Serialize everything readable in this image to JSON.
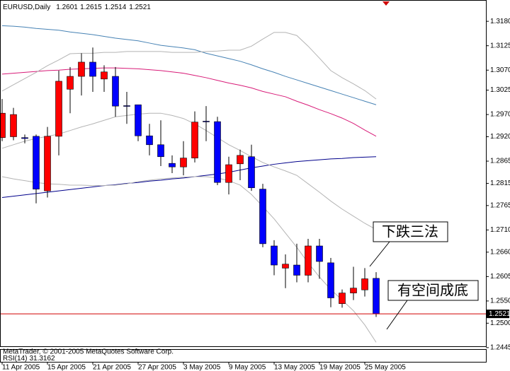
{
  "chart_data": {
    "type": "candlestick",
    "title": "EURUSD,Daily",
    "categories": [
      "11 Apr 2005",
      null,
      null,
      null,
      "15 Apr 2005",
      null,
      null,
      null,
      "21 Apr 2005",
      null,
      null,
      null,
      "27 Apr 2005",
      null,
      null,
      null,
      "3 May 2005",
      null,
      null,
      null,
      "9 May 2005",
      null,
      null,
      null,
      "13 May 2005",
      null,
      null,
      null,
      "19 May 2005",
      null,
      null,
      null,
      "25 May 2005",
      null
    ],
    "open": [
      1.2918,
      1.292,
      1.2918,
      1.2921,
      1.2798,
      1.2921,
      1.3027,
      1.3056,
      1.3088,
      1.305,
      1.3056,
      1.299,
      1.2992,
      1.2922,
      1.2902,
      1.286,
      1.2852,
      1.2872,
      1.2955,
      1.2954,
      1.2817,
      1.2859,
      1.2875,
      1.2802,
      1.2674,
      1.2624,
      1.2631,
      1.2608,
      1.2674,
      1.2636,
      1.2544,
      1.2568,
      1.2575,
      1.2601
    ],
    "high": [
      1.3005,
      1.2985,
      1.2925,
      1.2925,
      1.2942,
      1.3069,
      1.3077,
      1.3108,
      1.3121,
      1.3081,
      1.3077,
      1.3021,
      1.2992,
      1.2949,
      1.2957,
      1.2878,
      1.291,
      1.2977,
      1.2989,
      1.2965,
      1.2875,
      1.2891,
      1.2902,
      1.2814,
      1.2687,
      1.2655,
      1.2679,
      1.269,
      1.269,
      1.2647,
      1.2576,
      1.2627,
      1.2624,
      1.2615
    ],
    "low": [
      1.291,
      1.2912,
      1.2905,
      1.277,
      1.2783,
      1.2878,
      1.2973,
      1.3013,
      1.3021,
      1.3021,
      1.2965,
      1.2949,
      1.291,
      1.2878,
      1.2854,
      1.2838,
      1.2833,
      1.2862,
      1.291,
      1.2811,
      1.279,
      1.2822,
      1.2798,
      1.2671,
      1.2608,
      1.2579,
      1.2592,
      1.2592,
      1.26,
      1.2536,
      1.2535,
      1.2552,
      1.256,
      1.2514
    ],
    "close": [
      1.2973,
      1.297,
      1.2916,
      1.2802,
      1.2921,
      1.3045,
      1.3056,
      1.3088,
      1.3056,
      1.3066,
      1.2989,
      1.2989,
      1.2922,
      1.2902,
      1.2875,
      1.2852,
      1.2872,
      1.2953,
      1.2954,
      1.2817,
      1.2857,
      1.2878,
      1.2805,
      1.2679,
      1.2631,
      1.2633,
      1.2608,
      1.2674,
      1.2639,
      1.2557,
      1.2568,
      1.2579,
      1.26,
      1.2521
    ],
    "up_color": "#ff0000",
    "down_color": "#0000ff",
    "overlays": [
      {
        "color": "#4682b4",
        "values": [
          1.317,
          1.3169,
          1.3167,
          1.3164,
          1.3162,
          1.316,
          1.3156,
          1.3153,
          1.315,
          1.3146,
          1.3142,
          1.3139,
          1.3136,
          1.3131,
          1.3126,
          1.3123,
          1.312,
          1.3116,
          1.3108,
          1.3102,
          1.3096,
          1.309,
          1.3082,
          1.3073,
          1.3065,
          1.3056,
          1.3048,
          1.304,
          1.3032,
          1.3024,
          1.3016,
          1.3008,
          1.3,
          1.2992
        ]
      },
      {
        "color": "#d81b78",
        "values": [
          1.3061,
          1.3063,
          1.3065,
          1.3067,
          1.3069,
          1.307,
          1.3072,
          1.3073,
          1.3074,
          1.3075,
          1.3075,
          1.3074,
          1.3073,
          1.3071,
          1.3069,
          1.3066,
          1.3063,
          1.3058,
          1.3053,
          1.3047,
          1.3041,
          1.3036,
          1.303,
          1.3022,
          1.3016,
          1.301,
          1.3,
          1.2991,
          1.2981,
          1.2972,
          1.2962,
          1.295,
          1.2935,
          1.2921
        ]
      },
      {
        "color": "#00008b",
        "values": [
          1.2783,
          1.2786,
          1.2789,
          1.2792,
          1.2795,
          1.2798,
          1.2801,
          1.2804,
          1.2807,
          1.281,
          1.2812,
          1.2815,
          1.2817,
          1.282,
          1.2822,
          1.2825,
          1.2827,
          1.283,
          1.2833,
          1.2836,
          1.284,
          1.2845,
          1.285,
          1.2854,
          1.2858,
          1.2861,
          1.2864,
          1.2866,
          1.2868,
          1.287,
          1.2871,
          1.2873,
          1.2874,
          1.2875
        ]
      },
      {
        "color": "#b4b4b4",
        "values": [
          1.3023,
          1.3037,
          1.3051,
          1.3065,
          1.308,
          1.3093,
          1.3107,
          1.3108,
          1.3108,
          1.311,
          1.311,
          1.3112,
          1.3112,
          1.3112,
          1.3112,
          1.311,
          1.311,
          1.311,
          1.3112,
          1.3113,
          1.3115,
          1.3115,
          1.3124,
          1.314,
          1.3155,
          1.3155,
          1.3148,
          1.3124,
          1.3097,
          1.3069,
          1.3053,
          1.3039,
          1.3024,
          1.3005
        ]
      },
      {
        "color": "#b4b4b4",
        "values": [
          1.2894,
          1.2902,
          1.291,
          1.2916,
          1.2921,
          1.2926,
          1.2934,
          1.2942,
          1.2949,
          1.2957,
          1.2965,
          1.2968,
          1.2971,
          1.2973,
          1.2973,
          1.2968,
          1.2961,
          1.2949,
          1.2934,
          1.2918,
          1.2902,
          1.2889,
          1.2875,
          1.2862,
          1.2852,
          1.2843,
          1.2833,
          1.2814,
          1.2795,
          1.2775,
          1.2757,
          1.2741,
          1.2725,
          1.2711
        ]
      },
      {
        "color": "#b4b4b4",
        "values": [
          1.283,
          1.2825,
          1.2821,
          1.2817,
          1.2814,
          1.2813,
          1.2811,
          1.2811,
          1.281,
          1.281,
          1.2811,
          1.2814,
          1.2819,
          1.2822,
          1.2825,
          1.2827,
          1.2829,
          1.283,
          1.283,
          1.2827,
          1.2821,
          1.2811,
          1.279,
          1.2763,
          1.2735,
          1.2703,
          1.2671,
          1.2636,
          1.2604,
          1.2576,
          1.2552,
          1.2528,
          1.2496,
          1.2457
        ]
      }
    ],
    "ylim": [
      1.2448,
      1.3228
    ],
    "yticks": [
      {
        "value": 1.318,
        "label": "1.3180"
      },
      1.3125,
      {
        "value": 1.307,
        "label": "1.3070"
      },
      1.3025,
      {
        "value": 1.297,
        "label": "1.2970"
      },
      {
        "value": 1.292,
        "label": "1.2920"
      },
      1.2865,
      1.2815,
      1.2765,
      {
        "value": 1.271,
        "label": "1.2710"
      },
      {
        "value": 1.266,
        "label": "1.2660"
      },
      1.2605,
      {
        "value": 1.255,
        "label": "1.2550"
      },
      {
        "value": 1.25,
        "label": "1.2500"
      },
      1.2445
    ],
    "annotations": [
      "下跌三法",
      "有空间成底"
    ],
    "rsi": {
      "label": "RSI(14)",
      "value": 31.3162
    },
    "footer": "MetaTrader, © 2001-2005 MetaQuotes Software Corp."
  }
}
